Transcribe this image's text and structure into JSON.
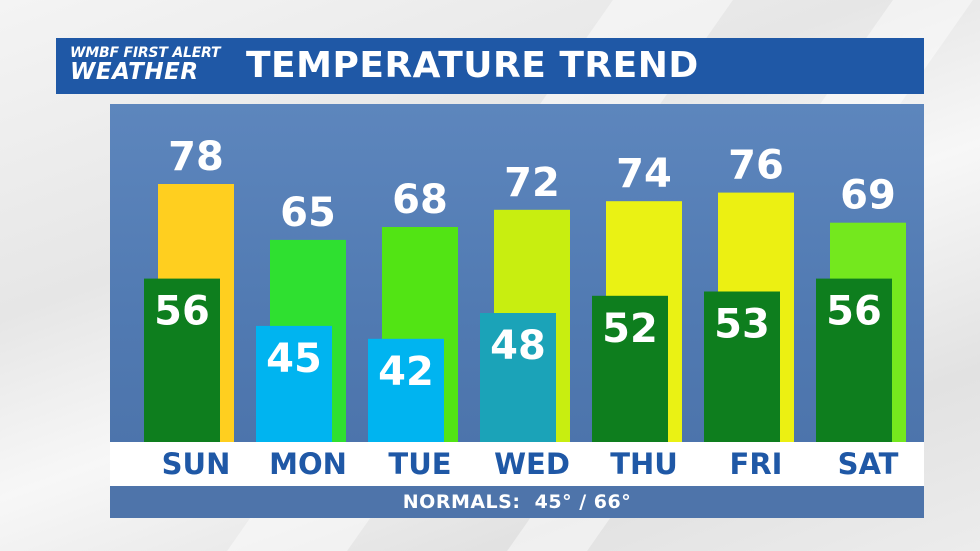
{
  "header": {
    "logo_line1": "WMBF FIRST ALERT",
    "logo_line2": "WEATHER",
    "title": "TEMPERATURE TREND"
  },
  "normals": "NORMALS:  45° / 66°",
  "colors": {
    "header_bg": "#1f58a6",
    "panel_bg": "#5680b8",
    "low_dark_green": "#0e7e1e",
    "low_cyan": "#00b4f0",
    "low_teal": "#1ba3b8"
  },
  "chart_data": {
    "type": "bar",
    "categories": [
      "SUN",
      "MON",
      "TUE",
      "WED",
      "THU",
      "FRI",
      "SAT"
    ],
    "series": [
      {
        "name": "",
        "values": [
          78,
          65,
          68,
          72,
          74,
          76,
          69
        ],
        "colors": [
          "#ffcf1f",
          "#2fe030",
          "#52e414",
          "#c8ee10",
          "#eaf214",
          "#ecf012",
          "#74e81e"
        ]
      },
      {
        "name": "",
        "values": [
          56,
          45,
          42,
          48,
          52,
          53,
          56
        ],
        "colors": [
          "#0e7e1e",
          "#00b4f0",
          "#00b4f0",
          "#1ba3b8",
          "#0e7e1e",
          "#0e7e1e",
          "#0e7e1e"
        ]
      }
    ],
    "ylim": [
      18,
      96
    ],
    "grid": false,
    "legend": "none",
    "title": "TEMPERATURE TREND"
  }
}
